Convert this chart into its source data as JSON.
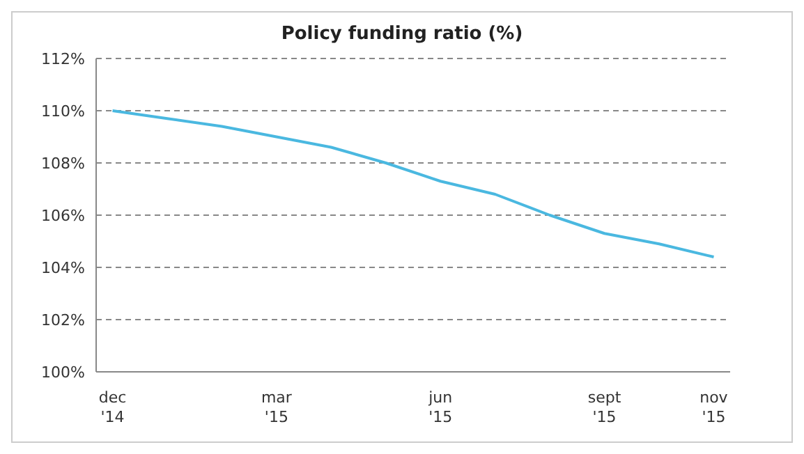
{
  "chart_data": {
    "type": "line",
    "title": "Policy funding ratio (%)",
    "categories": [
      "dec\n'14",
      null,
      null,
      "mar\n'15",
      null,
      null,
      "jun\n'15",
      null,
      null,
      "sept\n'15",
      null,
      "nov\n'15"
    ],
    "series": [
      {
        "color": "#4ab8e0",
        "values": [
          110.0,
          109.7,
          109.4,
          109.0,
          108.6,
          108.0,
          107.3,
          106.8,
          106.0,
          105.3,
          104.9,
          104.4
        ]
      }
    ],
    "ylim": [
      100,
      112
    ],
    "yticks": [
      {
        "value": 100,
        "label": "100%"
      },
      {
        "value": 102,
        "label": "102%"
      },
      {
        "value": 104,
        "label": "104%"
      },
      {
        "value": 106,
        "label": "106%"
      },
      {
        "value": 108,
        "label": "108%"
      },
      {
        "value": 110,
        "label": "110%"
      },
      {
        "value": 112,
        "label": "112%"
      }
    ],
    "grid": "y",
    "marker": "none",
    "line_style": "solid",
    "legend": false
  }
}
